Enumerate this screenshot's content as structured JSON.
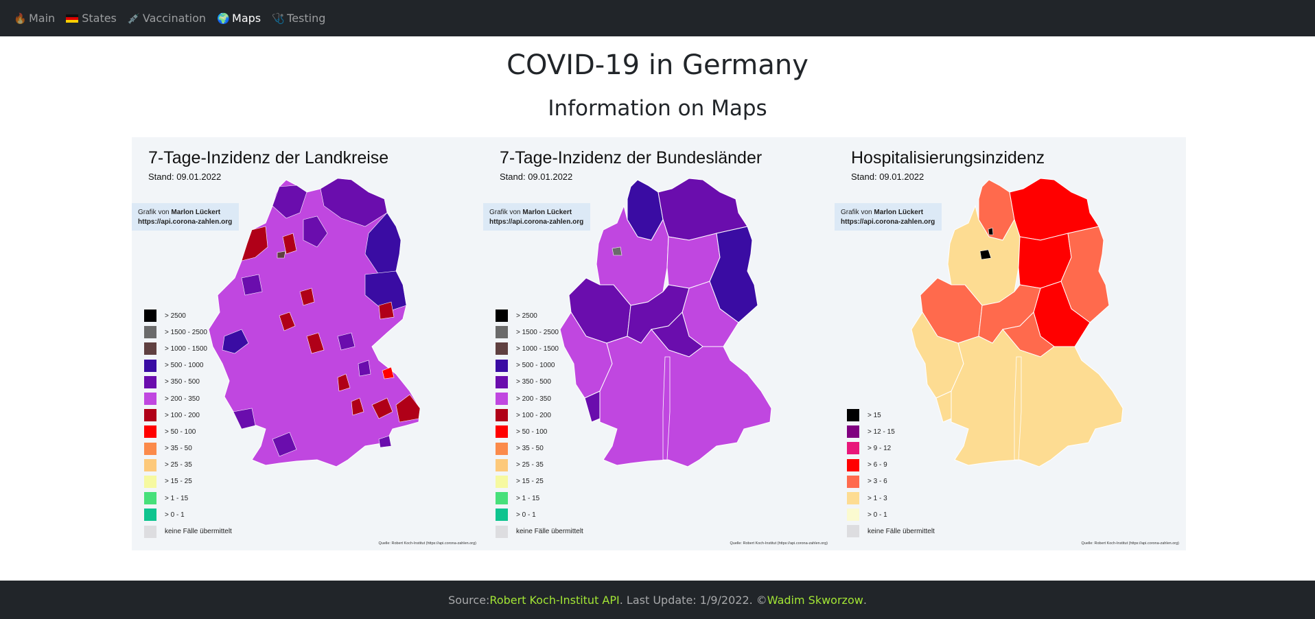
{
  "nav": {
    "items": [
      {
        "label": "Main",
        "icon": "fire-icon"
      },
      {
        "label": "States",
        "icon": "german-flag-icon"
      },
      {
        "label": "Vaccination",
        "icon": "syringe-icon"
      },
      {
        "label": "Maps",
        "icon": "globe-icon",
        "active": true
      },
      {
        "label": "Testing",
        "icon": "stethoscope-icon"
      }
    ]
  },
  "page": {
    "title": "COVID-19 in Germany",
    "subtitle": "Information on Maps"
  },
  "maps": [
    {
      "title": "7-Tage-Inzidenz der Landkreise",
      "date": "Stand: 09.01.2022",
      "credit_prefix": "Grafik von",
      "credit_author": "Marlon Lückert",
      "credit_url": "https://api.corona-zahlen.org",
      "source": "Quelle: Robert Koch-Institut (https://api.corona-zahlen.org)",
      "legend": [
        {
          "label": "> 2500",
          "color": "#000000"
        },
        {
          "label": "> 1500 - 2500",
          "color": "#6b6b6b"
        },
        {
          "label": "> 1000 - 1500",
          "color": "#5f4040"
        },
        {
          "label": "> 500 - 1000",
          "color": "#3a0ca3"
        },
        {
          "label": "> 350 - 500",
          "color": "#6a0dad"
        },
        {
          "label": "> 200 - 350",
          "color": "#c047e0"
        },
        {
          "label": "> 100 - 200",
          "color": "#b00018"
        },
        {
          "label": "> 50 - 100",
          "color": "#ff0000"
        },
        {
          "label": "> 35 - 50",
          "color": "#fb8a4a"
        },
        {
          "label": "> 25 - 35",
          "color": "#fdc97a"
        },
        {
          "label": "> 15 - 25",
          "color": "#f6f9a0"
        },
        {
          "label": "> 1 - 15",
          "color": "#47e07a"
        },
        {
          "label": "> 0 - 1",
          "color": "#0fc48f"
        },
        {
          "label": "keine Fälle übermittelt",
          "color": "#dddde0"
        }
      ]
    },
    {
      "title": "7-Tage-Inzidenz der Bundesländer",
      "date": "Stand: 09.01.2022",
      "credit_prefix": "Grafik von",
      "credit_author": "Marlon Lückert",
      "credit_url": "https://api.corona-zahlen.org",
      "source": "Quelle: Robert Koch-Institut (https://api.corona-zahlen.org)",
      "legend": [
        {
          "label": "> 2500",
          "color": "#000000"
        },
        {
          "label": "> 1500 - 2500",
          "color": "#6b6b6b"
        },
        {
          "label": "> 1000 - 1500",
          "color": "#5f4040"
        },
        {
          "label": "> 500 - 1000",
          "color": "#3a0ca3"
        },
        {
          "label": "> 350 - 500",
          "color": "#6a0dad"
        },
        {
          "label": "> 200 - 350",
          "color": "#c047e0"
        },
        {
          "label": "> 100 - 200",
          "color": "#b00018"
        },
        {
          "label": "> 50 - 100",
          "color": "#ff0000"
        },
        {
          "label": "> 35 - 50",
          "color": "#fb8a4a"
        },
        {
          "label": "> 25 - 35",
          "color": "#fdc97a"
        },
        {
          "label": "> 15 - 25",
          "color": "#f6f9a0"
        },
        {
          "label": "> 1 - 15",
          "color": "#47e07a"
        },
        {
          "label": "> 0 - 1",
          "color": "#0fc48f"
        },
        {
          "label": "keine Fälle übermittelt",
          "color": "#dddde0"
        }
      ]
    },
    {
      "title": "Hospitalisierungsinzidenz",
      "date": "Stand: 09.01.2022",
      "credit_prefix": "Grafik von",
      "credit_author": "Marlon Lückert",
      "credit_url": "https://api.corona-zahlen.org",
      "source": "Quelle: Robert Koch-Institut (https://api.corona-zahlen.org)",
      "legend": [
        {
          "label": "> 15",
          "color": "#000000"
        },
        {
          "label": "> 12 - 15",
          "color": "#800080"
        },
        {
          "label": "> 9 - 12",
          "color": "#e8177a"
        },
        {
          "label": "> 6 - 9",
          "color": "#ff0000"
        },
        {
          "label": "> 3 - 6",
          "color": "#ff6a4d"
        },
        {
          "label": "> 1 - 3",
          "color": "#fddc92"
        },
        {
          "label": "> 0 - 1",
          "color": "#fbfad0"
        },
        {
          "label": "keine Fälle übermittelt",
          "color": "#dddde0"
        }
      ]
    }
  ],
  "footer": {
    "prefix": "Source: ",
    "source_link": "Robert Koch-Institut API",
    "middle": ". Last Update: 1/9/2022. © ",
    "author_link": "Wadim Skworzow",
    "suffix": "."
  }
}
